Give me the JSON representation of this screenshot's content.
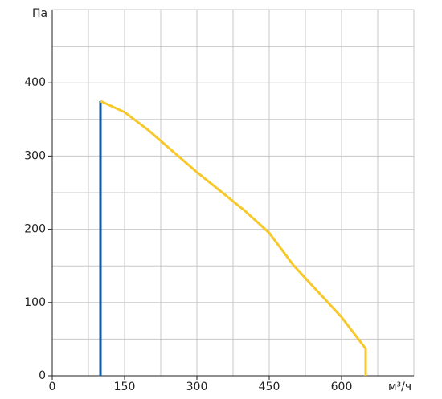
{
  "chart_data": {
    "type": "line",
    "x_label": "м³/ч",
    "y_label": "Па",
    "xlim": [
      0,
      750
    ],
    "ylim": [
      0,
      500
    ],
    "xticks": [
      0,
      150,
      300,
      450,
      600
    ],
    "yticks": [
      0,
      100,
      200,
      300,
      400
    ],
    "x_minor_grid": [
      75,
      225,
      375,
      525,
      675,
      750
    ],
    "y_minor_grid": [
      50,
      150,
      250,
      350,
      450,
      500
    ],
    "grid": true,
    "series": [
      {
        "color": "#0d5aa7",
        "x": [
          100,
          100
        ],
        "values": [
          0,
          375
        ]
      },
      {
        "color": "#f7c82a",
        "x": [
          100,
          150,
          200,
          300,
          400,
          450,
          500,
          600,
          650,
          650
        ],
        "values": [
          375,
          360,
          335,
          278,
          225,
          195,
          151,
          80,
          37,
          0
        ]
      }
    ]
  }
}
